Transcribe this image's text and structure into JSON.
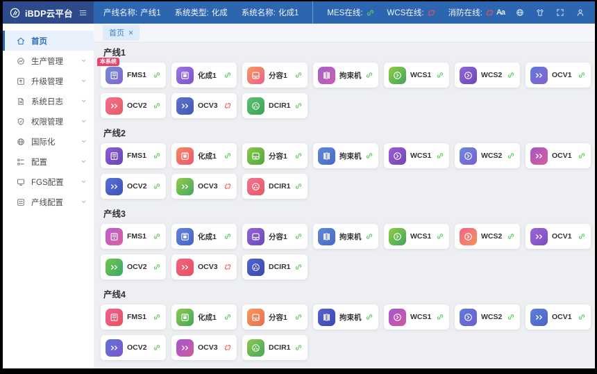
{
  "colors": {
    "header_bg": "#2c65b0",
    "header_brand_bg": "#2d4b8c",
    "online_green": "#5ec75a",
    "offline_red": "#ef5350",
    "active_menu_blue": "#2b6cb8",
    "badge_red": "#e8436b",
    "content_bg": "#edeff2"
  },
  "header": {
    "app_title": "iBDP云平台",
    "info": [
      {
        "label": "产线名称:",
        "value": "产线1"
      },
      {
        "label": "系统类型:",
        "value": "化成"
      },
      {
        "label": "系统名称:",
        "value": "化成1"
      }
    ],
    "statuses": [
      {
        "label": "MES在线:",
        "online": true
      },
      {
        "label": "WCS在线:",
        "online": false
      },
      {
        "label": "消防在线:",
        "online": false
      }
    ],
    "tools": [
      {
        "name": "font-size",
        "glyph": "Aa"
      },
      {
        "name": "language"
      },
      {
        "name": "theme"
      },
      {
        "name": "fullscreen"
      },
      {
        "name": "user"
      }
    ]
  },
  "sidebar": {
    "items": [
      {
        "label": "首页",
        "icon": "home",
        "active": true,
        "expandable": false
      },
      {
        "label": "生产管理",
        "icon": "production",
        "active": false,
        "expandable": true
      },
      {
        "label": "升级管理",
        "icon": "upgrade",
        "active": false,
        "expandable": true
      },
      {
        "label": "系统日志",
        "icon": "logs",
        "active": false,
        "expandable": true
      },
      {
        "label": "权限管理",
        "icon": "permission",
        "active": false,
        "expandable": true
      },
      {
        "label": "国际化",
        "icon": "globe",
        "active": false,
        "expandable": true
      },
      {
        "label": "配置",
        "icon": "config",
        "active": false,
        "expandable": true
      },
      {
        "label": "FGS配置",
        "icon": "fgs",
        "active": false,
        "expandable": true
      },
      {
        "label": "产线配置",
        "icon": "line-config",
        "active": false,
        "expandable": true
      }
    ]
  },
  "tabs": [
    {
      "label": "首页",
      "close_glyph": "×",
      "active": true
    }
  ],
  "sections": [
    {
      "title": "产线1",
      "cards": [
        {
          "label": "FMS1",
          "icon": "fms",
          "gradient": [
            "#6d8fd6",
            "#8a62d0"
          ],
          "online": true,
          "badge": "本系统"
        },
        {
          "label": "化成1",
          "icon": "formation",
          "gradient": [
            "#9d78e2",
            "#7a52cc"
          ],
          "online": true
        },
        {
          "label": "分容1",
          "icon": "grading",
          "gradient": [
            "#f59a5c",
            "#ec5f88"
          ],
          "online": true
        },
        {
          "label": "拘束机",
          "icon": "restraint",
          "gradient": [
            "#a561cc",
            "#c75fae"
          ],
          "online": true
        },
        {
          "label": "WCS1",
          "icon": "wcs",
          "gradient": [
            "#90cc40",
            "#3fa75e"
          ],
          "online": true
        },
        {
          "label": "WCS2",
          "icon": "wcs",
          "gradient": [
            "#9168d6",
            "#6a47b8"
          ],
          "online": true
        },
        {
          "label": "OCV1",
          "icon": "ocv",
          "gradient": [
            "#5f7ad6",
            "#8760d2"
          ],
          "online": true
        },
        {
          "label": "OCV2",
          "icon": "ocv",
          "gradient": [
            "#f07291",
            "#e75964"
          ],
          "online": true
        },
        {
          "label": "OCV3",
          "icon": "ocv",
          "gradient": [
            "#5e73d0",
            "#4256b4"
          ],
          "online": false
        },
        {
          "label": "DCIR1",
          "icon": "dcir",
          "gradient": [
            "#5ec06e",
            "#3aa257"
          ],
          "online": true
        }
      ]
    },
    {
      "title": "产线2",
      "cards": [
        {
          "label": "FMS1",
          "icon": "fms",
          "gradient": [
            "#8a5fd2",
            "#6a44b6"
          ],
          "online": true
        },
        {
          "label": "化成1",
          "icon": "formation",
          "gradient": [
            "#f5865c",
            "#e95873"
          ],
          "online": true
        },
        {
          "label": "分容1",
          "icon": "grading",
          "gradient": [
            "#8cc84e",
            "#4fa73c"
          ],
          "online": true
        },
        {
          "label": "拘束机",
          "icon": "restraint",
          "gradient": [
            "#6188d8",
            "#4769c6"
          ],
          "online": true
        },
        {
          "label": "WCS1",
          "icon": "wcs",
          "gradient": [
            "#9c5fd2",
            "#7144b6"
          ],
          "online": true
        },
        {
          "label": "WCS2",
          "icon": "wcs",
          "gradient": [
            "#6c8ada",
            "#7a5dd2"
          ],
          "online": true
        },
        {
          "label": "OCV1",
          "icon": "ocv",
          "gradient": [
            "#a457c6",
            "#d65f9c"
          ],
          "online": true
        },
        {
          "label": "OCV2",
          "icon": "ocv",
          "gradient": [
            "#5670d6",
            "#3f52ba"
          ],
          "online": true
        },
        {
          "label": "OCV3",
          "icon": "ocv",
          "gradient": [
            "#93cc48",
            "#44a75f"
          ],
          "online": false
        },
        {
          "label": "DCIR1",
          "icon": "dcir",
          "gradient": [
            "#f1748d",
            "#e55a67"
          ],
          "online": true
        }
      ]
    },
    {
      "title": "产线3",
      "cards": [
        {
          "label": "FMS1",
          "icon": "fms",
          "gradient": [
            "#b95fd0",
            "#dc5f9e"
          ],
          "online": true
        },
        {
          "label": "化成1",
          "icon": "formation",
          "gradient": [
            "#6287da",
            "#4560c6"
          ],
          "online": true
        },
        {
          "label": "分容1",
          "icon": "grading",
          "gradient": [
            "#9168d6",
            "#6c48b8"
          ],
          "online": true
        },
        {
          "label": "拘束机",
          "icon": "restraint",
          "gradient": [
            "#6188d8",
            "#4769c6"
          ],
          "online": true
        },
        {
          "label": "WCS1",
          "icon": "wcs",
          "gradient": [
            "#90cc40",
            "#3fa75e"
          ],
          "online": true
        },
        {
          "label": "WCS2",
          "icon": "wcs",
          "gradient": [
            "#ef6386",
            "#f3945c"
          ],
          "online": true
        },
        {
          "label": "OCV1",
          "icon": "ocv",
          "gradient": [
            "#9b66d6",
            "#7a4cc2"
          ],
          "online": true
        },
        {
          "label": "OCV2",
          "icon": "ocv",
          "gradient": [
            "#73c64e",
            "#3ca76a"
          ],
          "online": true
        },
        {
          "label": "OCV3",
          "icon": "ocv",
          "gradient": [
            "#f06385",
            "#e8505c"
          ],
          "online": false
        },
        {
          "label": "DCIR1",
          "icon": "dcir",
          "gradient": [
            "#5564cc",
            "#3b47ac"
          ],
          "online": true
        }
      ]
    },
    {
      "title": "产线4",
      "cards": [
        {
          "label": "FMS1",
          "icon": "fms",
          "gradient": [
            "#ef6290",
            "#e84e5e"
          ],
          "online": true
        },
        {
          "label": "化成1",
          "icon": "formation",
          "gradient": [
            "#8cc84e",
            "#43a75c"
          ],
          "online": true
        },
        {
          "label": "分容1",
          "icon": "grading",
          "gradient": [
            "#f59a5c",
            "#ea6b4e"
          ],
          "online": true
        },
        {
          "label": "拘束机",
          "icon": "restraint",
          "gradient": [
            "#5564d2",
            "#3b47b0"
          ],
          "online": true
        },
        {
          "label": "WCS1",
          "icon": "wcs",
          "gradient": [
            "#a457cc",
            "#ce5a9e"
          ],
          "online": true
        },
        {
          "label": "WCS2",
          "icon": "wcs",
          "gradient": [
            "#5f7ad8",
            "#6e5ed2"
          ],
          "online": true
        },
        {
          "label": "OCV1",
          "icon": "ocv",
          "gradient": [
            "#5f80da",
            "#4a62c6"
          ],
          "online": true
        },
        {
          "label": "OCV2",
          "icon": "ocv",
          "gradient": [
            "#5e73d6",
            "#8055ce"
          ],
          "online": true
        },
        {
          "label": "OCV3",
          "icon": "ocv",
          "gradient": [
            "#a457cc",
            "#ce5a9e"
          ],
          "online": false
        },
        {
          "label": "DCIR1",
          "icon": "dcir",
          "gradient": [
            "#8cc84e",
            "#43a75c"
          ],
          "online": true
        }
      ]
    }
  ]
}
